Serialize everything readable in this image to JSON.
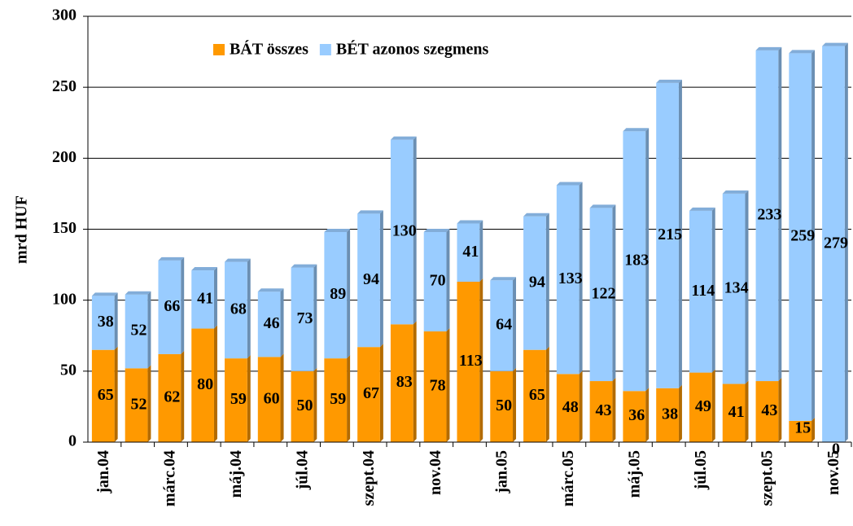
{
  "chart_data": {
    "type": "bar",
    "stacked": true,
    "y_label": "mrd HUF",
    "categories": [
      "jan.04",
      null,
      "márc.04",
      null,
      "máj.04",
      null,
      "júl.04",
      null,
      "szept.04",
      null,
      "nov.04",
      null,
      "jan.05",
      null,
      "márc.05",
      null,
      "máj.05",
      null,
      "júl.05",
      null,
      "szept.05",
      null,
      "nov.05"
    ],
    "series": [
      {
        "name": "BÁT összes",
        "color": "#FF9900",
        "values": [
          65,
          52,
          62,
          80,
          59,
          60,
          50,
          59,
          67,
          83,
          78,
          113,
          50,
          65,
          48,
          43,
          36,
          38,
          49,
          41,
          43,
          15,
          0
        ]
      },
      {
        "name": "BÉT azonos szegmens",
        "color": "#99CCFF",
        "values": [
          38,
          52,
          66,
          41,
          68,
          46,
          73,
          89,
          94,
          130,
          70,
          41,
          64,
          94,
          133,
          122,
          183,
          215,
          114,
          134,
          233,
          259,
          279
        ]
      }
    ],
    "ylim": [
      0,
      300
    ],
    "yticks": [
      0,
      50,
      100,
      150,
      200,
      250,
      300
    ],
    "grid": true,
    "legend": "top"
  }
}
